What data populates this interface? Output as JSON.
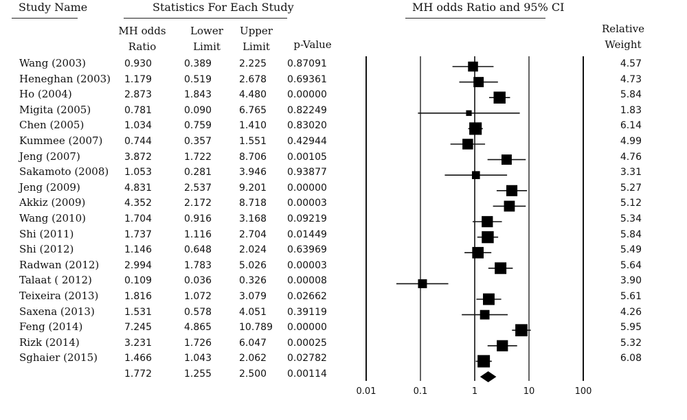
{
  "headers": {
    "study_name": "Study Name",
    "statistics": "Statistics For Each Study",
    "plot_title": "MH odds Ratio and 95% CI",
    "or_col": [
      "MH odds",
      "Ratio"
    ],
    "lower_col": [
      "Lower",
      "Limit"
    ],
    "upper_col": [
      "Upper",
      "Limit"
    ],
    "p_col": "p-Value",
    "weight_col": [
      "Relative",
      "Weight"
    ]
  },
  "chart_data": {
    "type": "forest",
    "title": "MH odds Ratio and 95% CI",
    "x_scale": "log",
    "xlim": [
      0.01,
      100
    ],
    "x_ticks": [
      "0.01",
      "0.1",
      "1",
      "10",
      "100"
    ],
    "x_tick_values": [
      0.01,
      0.1,
      1,
      10,
      100
    ],
    "studies": [
      {
        "name": "Wang (2003)",
        "or": "0.930",
        "lower": "0.389",
        "upper": "2.225",
        "p": "0.87091",
        "weight": "4.57"
      },
      {
        "name": "Heneghan (2003)",
        "or": "1.179",
        "lower": "0.519",
        "upper": "2.678",
        "p": "0.69361",
        "weight": "4.73"
      },
      {
        "name": "Ho (2004)",
        "or": "2.873",
        "lower": "1.843",
        "upper": "4.480",
        "p": "0.00000",
        "weight": "5.84"
      },
      {
        "name": "Migita (2005)",
        "or": "0.781",
        "lower": "0.090",
        "upper": "6.765",
        "p": "0.82249",
        "weight": "1.83"
      },
      {
        "name": "Chen (2005)",
        "or": "1.034",
        "lower": "0.759",
        "upper": "1.410",
        "p": "0.83020",
        "weight": "6.14"
      },
      {
        "name": "Kummee (2007)",
        "or": "0.744",
        "lower": "0.357",
        "upper": "1.551",
        "p": "0.42944",
        "weight": "4.99"
      },
      {
        "name": "Jeng (2007)",
        "or": "3.872",
        "lower": "1.722",
        "upper": "8.706",
        "p": "0.00105",
        "weight": "4.76"
      },
      {
        "name": "Sakamoto (2008)",
        "or": "1.053",
        "lower": "0.281",
        "upper": "3.946",
        "p": "0.93877",
        "weight": "3.31"
      },
      {
        "name": "Jeng (2009)",
        "or": "4.831",
        "lower": "2.537",
        "upper": "9.201",
        "p": "0.00000",
        "weight": "5.27"
      },
      {
        "name": "Akkiz (2009)",
        "or": "4.352",
        "lower": "2.172",
        "upper": "8.718",
        "p": "0.00003",
        "weight": "5.12"
      },
      {
        "name": "Wang (2010)",
        "or": "1.704",
        "lower": "0.916",
        "upper": "3.168",
        "p": "0.09219",
        "weight": "5.34"
      },
      {
        "name": "Shi (2011)",
        "or": "1.737",
        "lower": "1.116",
        "upper": "2.704",
        "p": "0.01449",
        "weight": "5.84"
      },
      {
        "name": "Shi (2012)",
        "or": "1.146",
        "lower": "0.648",
        "upper": "2.024",
        "p": "0.63969",
        "weight": "5.49"
      },
      {
        "name": "Radwan (2012)",
        "or": "2.994",
        "lower": "1.783",
        "upper": "5.026",
        "p": "0.00003",
        "weight": "5.64"
      },
      {
        "name": "Talaat ( 2012)",
        "or": "0.109",
        "lower": "0.036",
        "upper": "0.326",
        "p": "0.00008",
        "weight": "3.90"
      },
      {
        "name": "Teixeira (2013)",
        "or": "1.816",
        "lower": "1.072",
        "upper": "3.079",
        "p": "0.02662",
        "weight": "5.61"
      },
      {
        "name": "Saxena (2013)",
        "or": "1.531",
        "lower": "0.578",
        "upper": "4.051",
        "p": "0.39119",
        "weight": "4.26"
      },
      {
        "name": "Feng (2014)",
        "or": "7.245",
        "lower": "4.865",
        "upper": "10.789",
        "p": "0.00000",
        "weight": "5.95"
      },
      {
        "name": "Rizk (2014)",
        "or": "3.231",
        "lower": "1.726",
        "upper": "6.047",
        "p": "0.00025",
        "weight": "5.32"
      },
      {
        "name": "Sghaier (2015)",
        "or": "1.466",
        "lower": "1.043",
        "upper": "2.062",
        "p": "0.02782",
        "weight": "6.08"
      }
    ],
    "pooled": {
      "or": "1.772",
      "lower": "1.255",
      "upper": "2.500",
      "p": "0.00114"
    }
  }
}
